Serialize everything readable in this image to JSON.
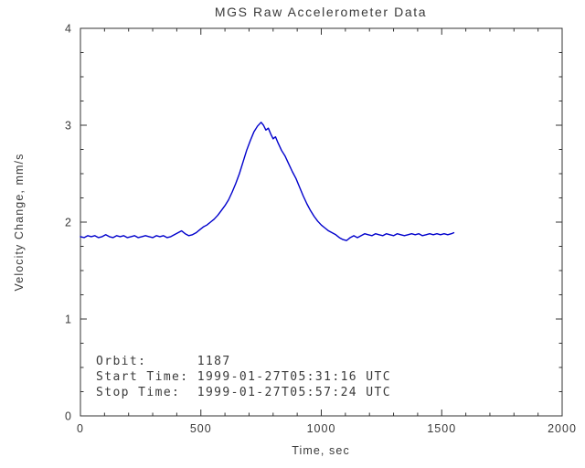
{
  "colors": {
    "background": "#ffffff",
    "axis": "#333333",
    "text": "#3a3a3a",
    "line": "#0000cc"
  },
  "chart_data": {
    "type": "line",
    "title": "MGS Raw Accelerometer Data",
    "xlabel": "Time, sec",
    "ylabel": "Velocity Change, mm/s",
    "xlim": [
      0,
      2000
    ],
    "ylim": [
      0,
      4
    ],
    "x_ticks": [
      0,
      500,
      1000,
      1500,
      2000
    ],
    "y_ticks": [
      0,
      1,
      2,
      3,
      4
    ],
    "x_minor_step": 100,
    "y_minor_step": 0.25,
    "grid": false,
    "legend": "none",
    "line_color": "#0000cc",
    "annotations": [
      "Orbit:      1187",
      "Start Time: 1999-01-27T05:31:16 UTC",
      "Stop Time:  1999-01-27T05:57:24 UTC"
    ],
    "series": [
      {
        "name": "velocity-change",
        "points": [
          [
            0,
            1.85
          ],
          [
            15,
            1.84
          ],
          [
            30,
            1.86
          ],
          [
            45,
            1.85
          ],
          [
            60,
            1.86
          ],
          [
            75,
            1.84
          ],
          [
            90,
            1.85
          ],
          [
            105,
            1.87
          ],
          [
            120,
            1.85
          ],
          [
            135,
            1.84
          ],
          [
            150,
            1.86
          ],
          [
            165,
            1.85
          ],
          [
            180,
            1.86
          ],
          [
            195,
            1.84
          ],
          [
            210,
            1.85
          ],
          [
            225,
            1.86
          ],
          [
            240,
            1.84
          ],
          [
            255,
            1.85
          ],
          [
            270,
            1.86
          ],
          [
            285,
            1.85
          ],
          [
            300,
            1.84
          ],
          [
            315,
            1.86
          ],
          [
            330,
            1.85
          ],
          [
            345,
            1.86
          ],
          [
            360,
            1.84
          ],
          [
            375,
            1.85
          ],
          [
            390,
            1.87
          ],
          [
            405,
            1.89
          ],
          [
            420,
            1.91
          ],
          [
            435,
            1.88
          ],
          [
            450,
            1.86
          ],
          [
            465,
            1.87
          ],
          [
            480,
            1.89
          ],
          [
            495,
            1.92
          ],
          [
            510,
            1.95
          ],
          [
            525,
            1.97
          ],
          [
            540,
            2.0
          ],
          [
            555,
            2.03
          ],
          [
            570,
            2.07
          ],
          [
            585,
            2.12
          ],
          [
            600,
            2.17
          ],
          [
            615,
            2.23
          ],
          [
            630,
            2.31
          ],
          [
            645,
            2.4
          ],
          [
            660,
            2.5
          ],
          [
            675,
            2.62
          ],
          [
            690,
            2.74
          ],
          [
            705,
            2.84
          ],
          [
            720,
            2.93
          ],
          [
            735,
            2.99
          ],
          [
            750,
            3.03
          ],
          [
            760,
            3.0
          ],
          [
            770,
            2.95
          ],
          [
            780,
            2.97
          ],
          [
            790,
            2.91
          ],
          [
            800,
            2.86
          ],
          [
            810,
            2.88
          ],
          [
            820,
            2.82
          ],
          [
            835,
            2.74
          ],
          [
            850,
            2.68
          ],
          [
            865,
            2.6
          ],
          [
            880,
            2.52
          ],
          [
            895,
            2.45
          ],
          [
            910,
            2.36
          ],
          [
            925,
            2.27
          ],
          [
            940,
            2.19
          ],
          [
            955,
            2.12
          ],
          [
            970,
            2.06
          ],
          [
            985,
            2.01
          ],
          [
            1000,
            1.97
          ],
          [
            1015,
            1.94
          ],
          [
            1030,
            1.91
          ],
          [
            1045,
            1.89
          ],
          [
            1060,
            1.87
          ],
          [
            1075,
            1.84
          ],
          [
            1090,
            1.82
          ],
          [
            1105,
            1.81
          ],
          [
            1120,
            1.84
          ],
          [
            1135,
            1.86
          ],
          [
            1150,
            1.84
          ],
          [
            1165,
            1.86
          ],
          [
            1180,
            1.88
          ],
          [
            1195,
            1.87
          ],
          [
            1210,
            1.86
          ],
          [
            1225,
            1.88
          ],
          [
            1240,
            1.87
          ],
          [
            1255,
            1.86
          ],
          [
            1270,
            1.88
          ],
          [
            1285,
            1.87
          ],
          [
            1300,
            1.86
          ],
          [
            1315,
            1.88
          ],
          [
            1330,
            1.87
          ],
          [
            1345,
            1.86
          ],
          [
            1360,
            1.87
          ],
          [
            1375,
            1.88
          ],
          [
            1390,
            1.87
          ],
          [
            1405,
            1.88
          ],
          [
            1420,
            1.86
          ],
          [
            1435,
            1.87
          ],
          [
            1450,
            1.88
          ],
          [
            1465,
            1.87
          ],
          [
            1480,
            1.88
          ],
          [
            1495,
            1.87
          ],
          [
            1510,
            1.88
          ],
          [
            1525,
            1.87
          ],
          [
            1540,
            1.88
          ],
          [
            1550,
            1.89
          ]
        ]
      }
    ]
  }
}
